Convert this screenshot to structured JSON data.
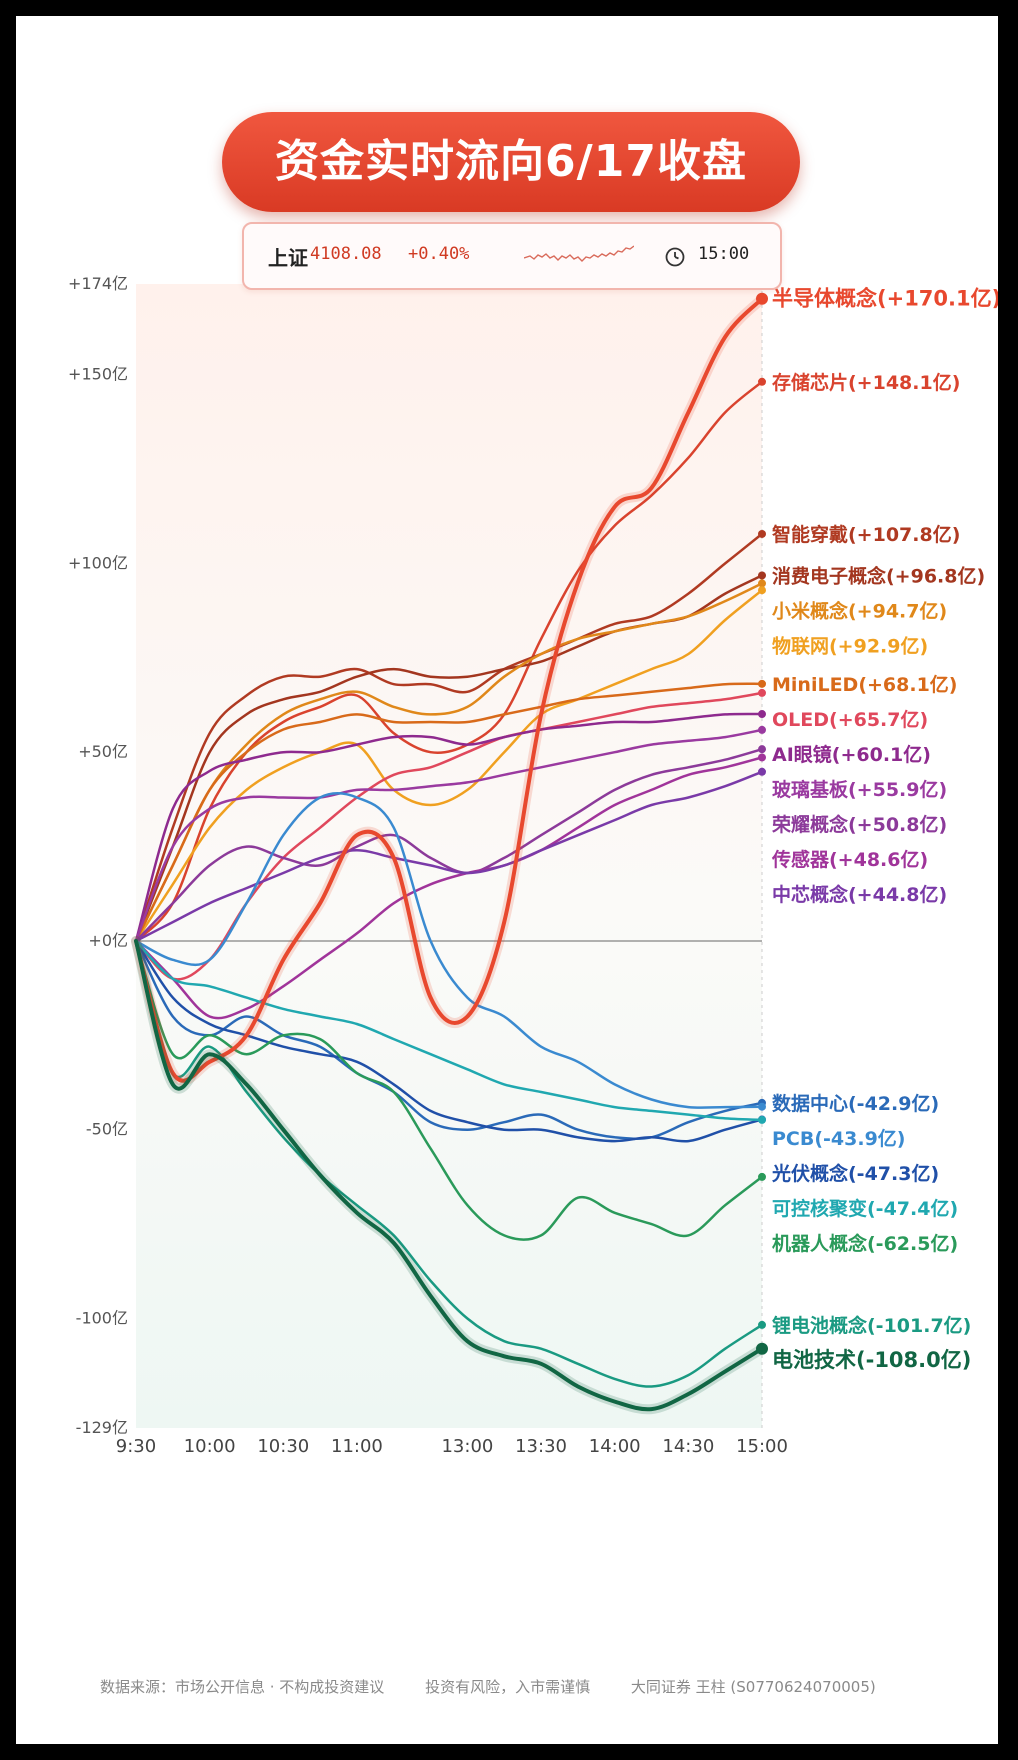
{
  "title": "资金实时流向6/17收盘",
  "index": {
    "name": "上证",
    "value": "4108.08",
    "change": "+0.40%",
    "time": "15:00"
  },
  "footer": {
    "source": "数据来源：市场公开信息 · 不构成投资建议",
    "risk": "投资有风险，入市需谨慎",
    "broker": "大同证券 王柱 (S0770624070005)"
  },
  "chart_data": {
    "type": "line",
    "x": [
      "9:30",
      "9:45",
      "10:00",
      "10:15",
      "10:30",
      "10:45",
      "11:00",
      "11:15",
      "11:30",
      "13:00",
      "13:15",
      "13:30",
      "13:45",
      "14:00",
      "14:15",
      "14:30",
      "14:45",
      "15:00"
    ],
    "xticks": [
      "9:30",
      "10:00",
      "10:30",
      "11:00",
      "13:00",
      "13:30",
      "14:00",
      "14:30",
      "15:00"
    ],
    "yticks": [
      174,
      150,
      100,
      50,
      0,
      -50,
      -100,
      -129
    ],
    "ytick_labels": [
      "+174亿",
      "+150亿",
      "+100亿",
      "+50亿",
      "+0亿",
      "-50亿",
      "-100亿",
      "-129亿"
    ],
    "ylim": [
      -129,
      174
    ],
    "series": [
      {
        "name": "半导体概念",
        "label": "半导体概念(+170.1亿)",
        "color": "#e8482e",
        "width": 4,
        "values": [
          0,
          -35,
          -32,
          -25,
          -5,
          10,
          28,
          22,
          -15,
          -20,
          5,
          60,
          95,
          115,
          120,
          140,
          160,
          170.1
        ]
      },
      {
        "name": "存储芯片",
        "label": "存储芯片(+148.1亿)",
        "color": "#d9432e",
        "width": 2.5,
        "values": [
          0,
          10,
          35,
          50,
          58,
          62,
          65,
          55,
          50,
          52,
          60,
          80,
          98,
          110,
          118,
          128,
          140,
          148.1
        ]
      },
      {
        "name": "智能穿戴",
        "label": "智能穿戴(+107.8亿)",
        "color": "#b03a22",
        "width": 2.5,
        "values": [
          0,
          30,
          55,
          65,
          70,
          70,
          72,
          68,
          68,
          66,
          72,
          76,
          80,
          84,
          86,
          92,
          100,
          107.8
        ]
      },
      {
        "name": "消费电子概念",
        "label": "消费电子概念(+96.8亿)",
        "color": "#a3361f",
        "width": 2.5,
        "values": [
          0,
          25,
          50,
          60,
          64,
          66,
          70,
          72,
          70,
          70,
          72,
          74,
          78,
          82,
          84,
          86,
          92,
          96.8
        ]
      },
      {
        "name": "小米概念",
        "label": "小米概念(+94.7亿)",
        "color": "#e0881a",
        "width": 2.5,
        "values": [
          0,
          20,
          40,
          52,
          60,
          64,
          66,
          62,
          60,
          62,
          70,
          76,
          80,
          82,
          84,
          86,
          90,
          94.7
        ]
      },
      {
        "name": "物联网",
        "label": "物联网(+92.9亿)",
        "color": "#f0a020",
        "width": 2.5,
        "values": [
          0,
          15,
          30,
          40,
          46,
          50,
          52,
          40,
          36,
          40,
          50,
          60,
          64,
          68,
          72,
          76,
          85,
          92.9
        ]
      },
      {
        "name": "MiniLED",
        "label": "MiniLED(+68.1亿)",
        "color": "#d86a1a",
        "width": 2.5,
        "values": [
          0,
          20,
          40,
          50,
          56,
          58,
          60,
          58,
          58,
          58,
          60,
          62,
          64,
          65,
          66,
          67,
          68,
          68.1
        ]
      },
      {
        "name": "OLED",
        "label": "OLED(+65.7亿)",
        "color": "#e0485c",
        "width": 2.5,
        "values": [
          0,
          -10,
          -5,
          10,
          22,
          30,
          38,
          44,
          46,
          50,
          54,
          56,
          58,
          60,
          62,
          63,
          64,
          65.7
        ]
      },
      {
        "name": "AI眼镜",
        "label": "AI眼镜(+60.1亿)",
        "color": "#8e2a8e",
        "width": 2.5,
        "values": [
          0,
          35,
          45,
          48,
          50,
          50,
          52,
          54,
          54,
          52,
          54,
          56,
          57,
          58,
          58,
          59,
          60,
          60.1
        ]
      },
      {
        "name": "玻璃基板",
        "label": "玻璃基板(+55.9亿)",
        "color": "#9a3aa0",
        "width": 2.5,
        "values": [
          0,
          25,
          35,
          38,
          38,
          38,
          40,
          40,
          41,
          42,
          44,
          46,
          48,
          50,
          52,
          53,
          54,
          55.9
        ]
      },
      {
        "name": "荣耀概念",
        "label": "荣耀概念(+50.8亿)",
        "color": "#8c3a9a",
        "width": 2.5,
        "values": [
          0,
          10,
          20,
          25,
          22,
          20,
          25,
          28,
          22,
          18,
          22,
          28,
          34,
          40,
          44,
          46,
          48,
          50.8
        ]
      },
      {
        "name": "传感器",
        "label": "传感器(+48.6亿)",
        "color": "#a0349a",
        "width": 2.5,
        "values": [
          0,
          -10,
          -20,
          -18,
          -12,
          -5,
          2,
          10,
          15,
          18,
          20,
          24,
          30,
          36,
          40,
          44,
          46,
          48.6
        ]
      },
      {
        "name": "中芯概念",
        "label": "中芯概念(+44.8亿)",
        "color": "#7a3aa8",
        "width": 2.5,
        "values": [
          0,
          5,
          10,
          14,
          18,
          22,
          24,
          22,
          20,
          18,
          20,
          24,
          28,
          32,
          36,
          38,
          41,
          44.8
        ]
      },
      {
        "name": "数据中心",
        "label": "数据中心(-42.9亿)",
        "color": "#2a6ab8",
        "width": 2.5,
        "values": [
          0,
          -20,
          -25,
          -20,
          -25,
          -28,
          -35,
          -40,
          -48,
          -50,
          -48,
          -46,
          -50,
          -52,
          -52,
          -48,
          -45,
          -42.9
        ]
      },
      {
        "name": "PCB",
        "label": "PCB(-43.9亿)",
        "color": "#3a8ad0",
        "width": 2.5,
        "values": [
          0,
          -5,
          -5,
          10,
          28,
          38,
          38,
          30,
          0,
          -15,
          -20,
          -28,
          -32,
          -38,
          -42,
          -44,
          -44,
          -43.9
        ]
      },
      {
        "name": "光伏概念",
        "label": "光伏概念(-47.3亿)",
        "color": "#2050a8",
        "width": 2.5,
        "values": [
          0,
          -15,
          -22,
          -25,
          -28,
          -30,
          -32,
          -38,
          -45,
          -48,
          -50,
          -50,
          -52,
          -53,
          -52,
          -53,
          -50,
          -47.3
        ]
      },
      {
        "name": "可控核聚变",
        "label": "可控核聚变(-47.4亿)",
        "color": "#20a8b0",
        "width": 2.5,
        "values": [
          0,
          -10,
          -12,
          -15,
          -18,
          -20,
          -22,
          -26,
          -30,
          -34,
          -38,
          -40,
          -42,
          -44,
          -45,
          -46,
          -47,
          -47.4
        ]
      },
      {
        "name": "机器人概念",
        "label": "机器人概念(-62.5亿)",
        "color": "#2a9a5a",
        "width": 2.5,
        "values": [
          0,
          -30,
          -25,
          -30,
          -25,
          -26,
          -35,
          -40,
          -55,
          -70,
          -78,
          -78,
          -68,
          -72,
          -75,
          -78,
          -70,
          -62.5
        ]
      },
      {
        "name": "锂电池概念",
        "label": "锂电池概念(-101.7亿)",
        "color": "#1a9a82",
        "width": 2.5,
        "values": [
          0,
          -35,
          -28,
          -40,
          -52,
          -62,
          -70,
          -78,
          -90,
          -100,
          -106,
          -108,
          -112,
          -116,
          -118,
          -115,
          -108,
          -101.7
        ]
      },
      {
        "name": "电池技术",
        "label": "电池技术(-108.0亿)",
        "color": "#116644",
        "width": 4,
        "values": [
          0,
          -38,
          -30,
          -38,
          -50,
          -62,
          -72,
          -80,
          -94,
          -106,
          -110,
          -112,
          -118,
          -122,
          -124,
          -120,
          -114,
          -108.0
        ]
      }
    ]
  }
}
